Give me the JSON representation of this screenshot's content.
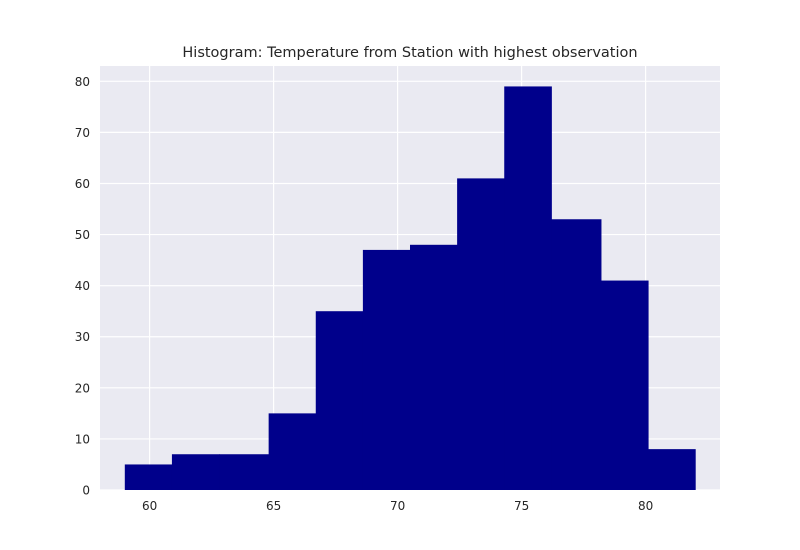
{
  "chart_data": {
    "type": "bar",
    "title": "Histogram: Temperature from Station with highest observation",
    "xlabel": "",
    "ylabel": "",
    "bar_color": "#00008b",
    "background_color": "#eaeaf2",
    "grid_color": "#ffffff",
    "grid": true,
    "xlim": [
      58.0,
      83.0
    ],
    "ylim": [
      0,
      83
    ],
    "xticks": [
      60,
      65,
      70,
      75,
      80
    ],
    "yticks": [
      0,
      10,
      20,
      30,
      40,
      50,
      60,
      70,
      80
    ],
    "xtick_labels": [
      "60",
      "65",
      "70",
      "75",
      "80"
    ],
    "ytick_labels": [
      "0",
      "10",
      "20",
      "30",
      "40",
      "50",
      "60",
      "70",
      "80"
    ],
    "bins": [
      {
        "start": 59.0,
        "end": 60.9,
        "count": 5
      },
      {
        "start": 60.9,
        "end": 62.8,
        "count": 7
      },
      {
        "start": 62.8,
        "end": 64.8,
        "count": 7
      },
      {
        "start": 64.8,
        "end": 66.7,
        "count": 15
      },
      {
        "start": 66.7,
        "end": 68.6,
        "count": 35
      },
      {
        "start": 68.6,
        "end": 70.5,
        "count": 47
      },
      {
        "start": 70.5,
        "end": 72.4,
        "count": 48
      },
      {
        "start": 72.4,
        "end": 74.3,
        "count": 61
      },
      {
        "start": 74.3,
        "end": 76.2,
        "count": 79
      },
      {
        "start": 76.2,
        "end": 78.2,
        "count": 53
      },
      {
        "start": 78.2,
        "end": 80.1,
        "count": 41
      },
      {
        "start": 80.1,
        "end": 82.0,
        "count": 8
      }
    ]
  }
}
